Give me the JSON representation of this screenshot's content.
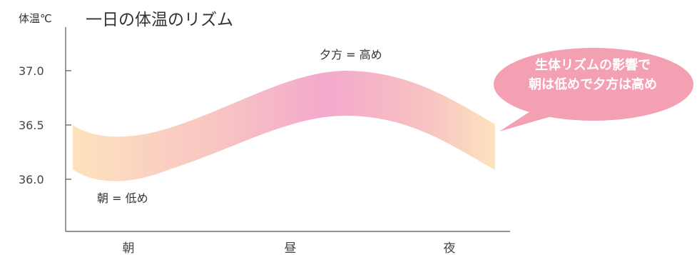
{
  "chart_data": {
    "type": "area",
    "title": "一日の体温のリズム",
    "ylabel": "体温℃",
    "xlabel": "",
    "categories": [
      "朝",
      "昼",
      "夜"
    ],
    "yticks": [
      "37.0",
      "36.5",
      "36.0"
    ],
    "ylim": [
      35.5,
      37.2
    ],
    "series": [
      {
        "x": [
          0,
          0.07,
          0.5,
          0.7,
          1.0
        ],
        "upper": [
          36.5,
          36.37,
          36.85,
          37.0,
          36.5
        ],
        "lower": [
          36.1,
          35.97,
          36.45,
          36.58,
          36.1
        ]
      }
    ],
    "annotations": {
      "high": "夕方 = 高め",
      "low": "朝 = 低め"
    },
    "callout": {
      "line1": "生体リズムの影響で",
      "line2": "朝は低めで夕方は高め"
    },
    "colors": {
      "band_start": "#fde2bd",
      "band_peak": "#f3a9cc",
      "callout": "#f4a0b3",
      "axis": "#555555"
    }
  }
}
